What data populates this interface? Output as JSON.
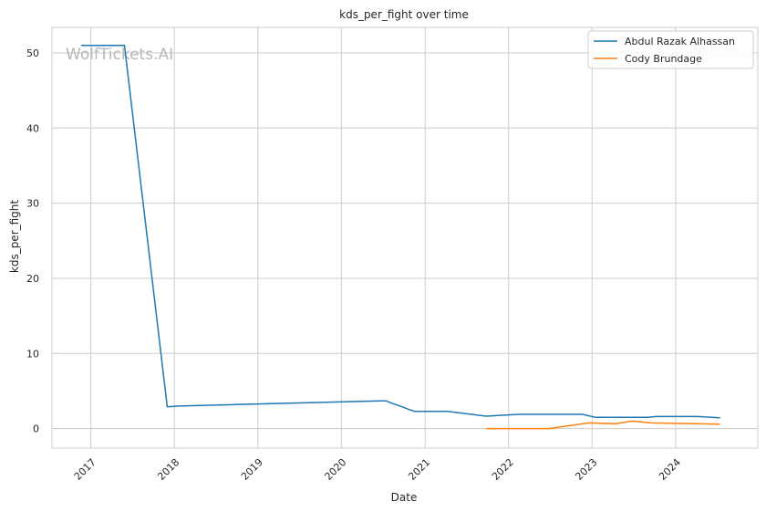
{
  "chart_data": {
    "type": "line",
    "title": "kds_per_fight over time",
    "xlabel": "Date",
    "ylabel": "kds_per_fight",
    "watermark": "WolfTickets.AI",
    "x_tick_labels": [
      "2017",
      "2018",
      "2019",
      "2020",
      "2021",
      "2022",
      "2023",
      "2024"
    ],
    "y_ticks": [
      0,
      10,
      20,
      30,
      40,
      50
    ],
    "xlim": [
      "2016-07-15",
      "2024-12-25"
    ],
    "ylim": [
      -2.6,
      53.4
    ],
    "grid": true,
    "legend_position": "top-right",
    "series": [
      {
        "name": "Abdul Razak Alhassan",
        "color": "#1f77b4",
        "points": [
          [
            "2016-11-19",
            51.0
          ],
          [
            "2017-05-28",
            51.0
          ],
          [
            "2017-12-01",
            2.9
          ],
          [
            "2018-01-20",
            3.0
          ],
          [
            "2020-07-11",
            3.7
          ],
          [
            "2020-11-14",
            2.3
          ],
          [
            "2021-04-10",
            2.3
          ],
          [
            "2021-09-25",
            1.65
          ],
          [
            "2022-02-12",
            1.9
          ],
          [
            "2022-11-19",
            1.9
          ],
          [
            "2023-01-14",
            1.5
          ],
          [
            "2023-09-01",
            1.5
          ],
          [
            "2023-10-07",
            1.6
          ],
          [
            "2024-04-06",
            1.6
          ],
          [
            "2024-07-13",
            1.45
          ]
        ]
      },
      {
        "name": "Cody Brundage",
        "color": "#ff7f0e",
        "points": [
          [
            "2021-09-25",
            0.0
          ],
          [
            "2022-06-25",
            0.0
          ],
          [
            "2022-12-17",
            0.75
          ],
          [
            "2023-04-15",
            0.65
          ],
          [
            "2023-06-24",
            1.0
          ],
          [
            "2023-09-16",
            0.75
          ],
          [
            "2024-07-13",
            0.6
          ]
        ]
      }
    ]
  }
}
